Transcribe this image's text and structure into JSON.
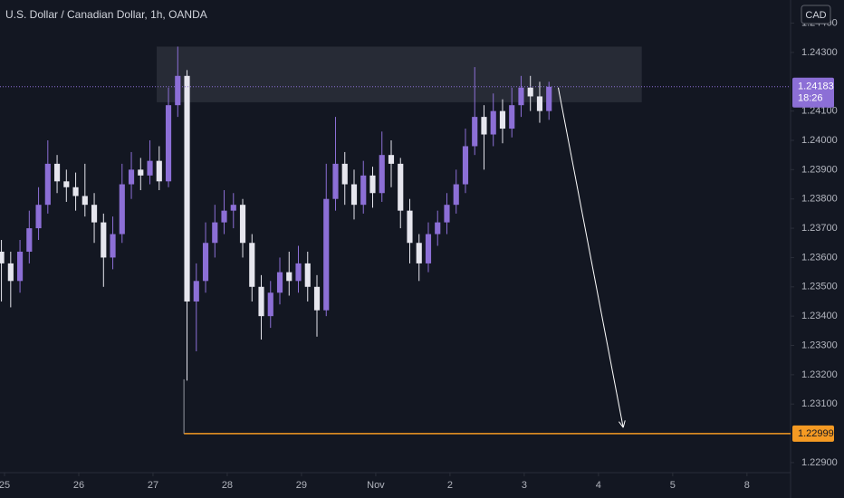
{
  "chart_data": {
    "type": "candlestick",
    "title": "U.S. Dollar / Canadian Dollar, 1h, OANDA",
    "currency": "CAD",
    "countdown": "18:26",
    "up_color": "#8c6fd6",
    "down_color": "#e6e6ee",
    "x": [
      -1,
      2,
      5,
      8,
      11,
      14,
      17,
      20,
      23,
      26,
      29,
      32,
      35,
      38,
      41,
      44,
      47,
      50,
      53,
      56,
      59,
      62,
      65,
      68,
      71,
      74,
      77,
      80,
      83,
      86,
      89,
      92,
      95,
      98,
      101,
      104,
      107,
      110,
      113,
      116,
      119,
      122,
      125,
      128,
      131,
      134,
      137,
      140,
      143,
      146,
      149,
      152,
      155,
      158,
      161,
      164,
      167,
      170,
      173,
      176
    ],
    "open": [
      1.2362,
      1.2358,
      1.2352,
      1.2362,
      1.237,
      1.2378,
      1.2392,
      1.2386,
      1.2384,
      1.2381,
      1.2378,
      1.2372,
      1.236,
      1.2368,
      1.2385,
      1.239,
      1.2388,
      1.2393,
      1.2386,
      1.2412,
      1.2422,
      1.2345,
      1.2352,
      1.2365,
      1.2372,
      1.2376,
      1.2378,
      1.2365,
      1.235,
      1.234,
      1.2348,
      1.2355,
      1.2352,
      1.2358,
      1.235,
      1.2342,
      1.238,
      1.2392,
      1.2385,
      1.2378,
      1.2388,
      1.2382,
      1.2395,
      1.2392,
      1.2376,
      1.2365,
      1.2358,
      1.2368,
      1.2372,
      1.2378,
      1.2385,
      1.2398,
      1.2408,
      1.2402,
      1.241,
      1.2404,
      1.2412,
      1.2418,
      1.2415,
      1.241
    ],
    "high": [
      1.2366,
      1.2362,
      1.2366,
      1.2376,
      1.2384,
      1.24,
      1.2395,
      1.239,
      1.2389,
      1.2392,
      1.2382,
      1.2375,
      1.2374,
      1.2392,
      1.2396,
      1.2394,
      1.24,
      1.2398,
      1.2418,
      1.2432,
      1.2424,
      1.2358,
      1.2372,
      1.2378,
      1.2383,
      1.2382,
      1.238,
      1.2368,
      1.2354,
      1.2352,
      1.236,
      1.2362,
      1.2364,
      1.2362,
      1.2354,
      1.2392,
      1.2408,
      1.2396,
      1.239,
      1.2393,
      1.2391,
      1.2403,
      1.24,
      1.2394,
      1.238,
      1.2368,
      1.2372,
      1.2376,
      1.2382,
      1.239,
      1.2404,
      1.2425,
      1.2412,
      1.2416,
      1.2414,
      1.2418,
      1.2422,
      1.2422,
      1.242,
      1.242
    ],
    "low": [
      1.2345,
      1.2343,
      1.2348,
      1.2358,
      1.2366,
      1.2375,
      1.2382,
      1.2379,
      1.2376,
      1.2374,
      1.2365,
      1.235,
      1.2356,
      1.2365,
      1.238,
      1.2383,
      1.2385,
      1.2383,
      1.2384,
      1.2408,
      1.2318,
      1.2328,
      1.2348,
      1.236,
      1.2368,
      1.237,
      1.236,
      1.2345,
      1.2332,
      1.2336,
      1.2344,
      1.2347,
      1.2348,
      1.2345,
      1.2333,
      1.234,
      1.2376,
      1.2378,
      1.2373,
      1.2375,
      1.2377,
      1.2379,
      1.2384,
      1.237,
      1.2358,
      1.2352,
      1.2355,
      1.2364,
      1.2368,
      1.2375,
      1.2382,
      1.2395,
      1.239,
      1.2398,
      1.2399,
      1.2401,
      1.2408,
      1.241,
      1.2406,
      1.2407
    ],
    "close": [
      1.2358,
      1.2352,
      1.2362,
      1.237,
      1.2378,
      1.2392,
      1.2386,
      1.2384,
      1.2381,
      1.2378,
      1.2372,
      1.236,
      1.2368,
      1.2385,
      1.239,
      1.2388,
      1.2393,
      1.2386,
      1.2412,
      1.2422,
      1.2345,
      1.2352,
      1.2365,
      1.2372,
      1.2376,
      1.2378,
      1.2365,
      1.235,
      1.234,
      1.2348,
      1.2355,
      1.2352,
      1.2358,
      1.235,
      1.2342,
      1.238,
      1.2392,
      1.2385,
      1.2378,
      1.2388,
      1.2382,
      1.2395,
      1.2392,
      1.2376,
      1.2365,
      1.2358,
      1.2368,
      1.2372,
      1.2378,
      1.2385,
      1.2398,
      1.2408,
      1.2402,
      1.241,
      1.2404,
      1.2412,
      1.2418,
      1.2415,
      1.241,
      1.24183
    ],
    "xlim": [
      -1.46,
      254.1
    ],
    "xticks": [
      {
        "value": 0,
        "label": "25"
      },
      {
        "value": 24,
        "label": "26"
      },
      {
        "value": 48,
        "label": "27"
      },
      {
        "value": 72,
        "label": "28"
      },
      {
        "value": 96,
        "label": "29"
      },
      {
        "value": 120,
        "label": "Nov"
      },
      {
        "value": 144,
        "label": "2"
      },
      {
        "value": 168,
        "label": "3"
      },
      {
        "value": 192,
        "label": "4"
      },
      {
        "value": 216,
        "label": "5"
      },
      {
        "value": 240,
        "label": "8"
      }
    ],
    "ylim": [
      1.22872,
      1.24479
    ],
    "yticks": [
      {
        "value": 1.229,
        "label": "1.22900"
      },
      {
        "value": 1.231,
        "label": "1.23100"
      },
      {
        "value": 1.232,
        "label": "1.23200"
      },
      {
        "value": 1.233,
        "label": "1.23300"
      },
      {
        "value": 1.234,
        "label": "1.23400"
      },
      {
        "value": 1.235,
        "label": "1.23500"
      },
      {
        "value": 1.236,
        "label": "1.23600"
      },
      {
        "value": 1.237,
        "label": "1.23700"
      },
      {
        "value": 1.238,
        "label": "1.23800"
      },
      {
        "value": 1.239,
        "label": "1.23900"
      },
      {
        "value": 1.24,
        "label": "1.24000"
      },
      {
        "value": 1.241,
        "label": "1.24100"
      },
      {
        "value": 1.243,
        "label": "1.24300"
      },
      {
        "value": 1.244,
        "label": "1.24400"
      }
    ],
    "zone": {
      "x": [
        49.2,
        206
      ],
      "y": [
        1.2413,
        1.2432
      ]
    },
    "arrow": {
      "x": [
        179,
        200
      ],
      "y": [
        1.2418,
        1.2302
      ]
    },
    "target": {
      "x": 58,
      "value": 1.22999
    }
  }
}
